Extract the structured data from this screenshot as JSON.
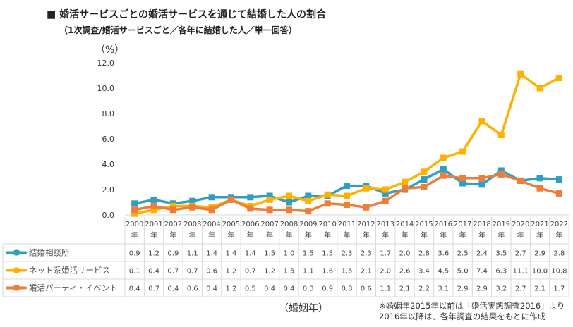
{
  "title": "■ 婚活サービスごとの婚活サービスを通じて結婚した人の割合",
  "subtitle": "（1次調査/婚活サービスごと／各年に結婚した人／単一回答）",
  "note_lines": [
    "※婚姻年2015年以前は「婚活実態調査2016」より",
    "2016年以降は、各年調査の結果をもとに作成"
  ],
  "chart_data": {
    "type": "line",
    "ylabel": "（%）",
    "xlabel": "（婚姻年）",
    "ylim": [
      0,
      12
    ],
    "yticks": [
      "0.0",
      "2.0",
      "4.0",
      "6.0",
      "8.0",
      "10.0",
      "12.0"
    ],
    "grid": false,
    "legend": "data-table-left",
    "year_suffix": "年",
    "categories": [
      "2000",
      "2001",
      "2002",
      "2003",
      "2004",
      "2005",
      "2006",
      "2007",
      "2008",
      "2009",
      "2010",
      "2011",
      "2012",
      "2013",
      "2014",
      "2015",
      "2016",
      "2017",
      "2018",
      "2019",
      "2020",
      "2021",
      "2022"
    ],
    "series": [
      {
        "name": "結婚相談所",
        "color": "#2e9fbf",
        "values": [
          0.9,
          1.2,
          0.9,
          1.1,
          1.4,
          1.4,
          1.4,
          1.5,
          1.0,
          1.5,
          1.5,
          2.3,
          2.3,
          1.7,
          2.0,
          2.8,
          3.6,
          2.5,
          2.4,
          3.5,
          2.7,
          2.9,
          2.8
        ]
      },
      {
        "name": "ネット系婚活サービス",
        "color": "#ffb000",
        "values": [
          0.1,
          0.4,
          0.7,
          0.7,
          0.6,
          1.2,
          0.7,
          1.2,
          1.5,
          1.1,
          1.6,
          1.5,
          2.1,
          2.0,
          2.6,
          3.4,
          4.5,
          5.0,
          7.4,
          6.3,
          11.1,
          10.0,
          10.8
        ]
      },
      {
        "name": "婚活パーティ・イベント",
        "color": "#ee7d3a",
        "values": [
          0.4,
          0.7,
          0.4,
          0.6,
          0.4,
          1.2,
          0.5,
          0.4,
          0.4,
          0.3,
          0.9,
          0.8,
          0.6,
          1.1,
          2.1,
          2.2,
          3.1,
          2.9,
          2.9,
          3.2,
          2.7,
          2.1,
          1.7
        ]
      }
    ]
  }
}
